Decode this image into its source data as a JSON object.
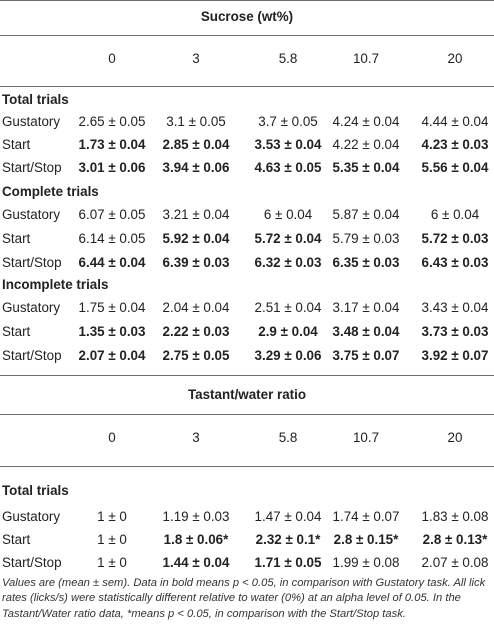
{
  "table1": {
    "header": "Sucrose (wt%)",
    "columns": [
      "0",
      "3",
      "5.8",
      "10.7",
      "20"
    ],
    "sections": [
      {
        "title": "Total trials",
        "rows": [
          {
            "label": "Gustatory",
            "cells": [
              {
                "text": "2.65 ± 0.05",
                "bold": false
              },
              {
                "text": "3.1 ± 0.05",
                "bold": false
              },
              {
                "text": "3.7 ± 0.05",
                "bold": false
              },
              {
                "text": "4.24 ± 0.04",
                "bold": false
              },
              {
                "text": "4.44 ± 0.04",
                "bold": false
              }
            ]
          },
          {
            "label": "Start",
            "cells": [
              {
                "text": "1.73 ± 0.04",
                "bold": true
              },
              {
                "text": "2.85 ± 0.04",
                "bold": true
              },
              {
                "text": "3.53 ± 0.04",
                "bold": true
              },
              {
                "text": "4.22 ± 0.04",
                "bold": false
              },
              {
                "text": "4.23 ± 0.03",
                "bold": true
              }
            ]
          },
          {
            "label": "Start/Stop",
            "cells": [
              {
                "text": "3.01 ± 0.06",
                "bold": true
              },
              {
                "text": "3.94 ± 0.06",
                "bold": true
              },
              {
                "text": "4.63 ± 0.05",
                "bold": true
              },
              {
                "text": "5.35 ± 0.04",
                "bold": true
              },
              {
                "text": "5.56 ± 0.04",
                "bold": true
              }
            ]
          }
        ]
      },
      {
        "title": "Complete trials",
        "rows": [
          {
            "label": "Gustatory",
            "cells": [
              {
                "text": "6.07 ± 0.05",
                "bold": false
              },
              {
                "text": "3.21 ± 0.04",
                "bold": false
              },
              {
                "text": "6 ± 0.04",
                "bold": false
              },
              {
                "text": "5.87 ± 0.04",
                "bold": false
              },
              {
                "text": "6 ± 0.04",
                "bold": false
              }
            ]
          },
          {
            "label": "Start",
            "cells": [
              {
                "text": "6.14 ± 0.05",
                "bold": false
              },
              {
                "text": "5.92 ± 0.04",
                "bold": true
              },
              {
                "text": "5.72 ± 0.04",
                "bold": true
              },
              {
                "text": "5.79 ± 0.03",
                "bold": false
              },
              {
                "text": "5.72 ± 0.03",
                "bold": true
              }
            ]
          },
          {
            "label": "Start/Stop",
            "cells": [
              {
                "text": "6.44 ± 0.04",
                "bold": true
              },
              {
                "text": "6.39 ± 0.03",
                "bold": true
              },
              {
                "text": "6.32 ± 0.03",
                "bold": true
              },
              {
                "text": "6.35 ± 0.03",
                "bold": true
              },
              {
                "text": "6.43 ± 0.03",
                "bold": true
              }
            ]
          }
        ]
      },
      {
        "title": "Incomplete trials",
        "rows": [
          {
            "label": "Gustatory",
            "cells": [
              {
                "text": "1.75 ± 0.04",
                "bold": false
              },
              {
                "text": "2.04 ± 0.04",
                "bold": false
              },
              {
                "text": "2.51 ± 0.04",
                "bold": false
              },
              {
                "text": "3.17 ± 0.04",
                "bold": false
              },
              {
                "text": "3.43 ± 0.04",
                "bold": false
              }
            ]
          },
          {
            "label": "Start",
            "cells": [
              {
                "text": "1.35 ± 0.03",
                "bold": true
              },
              {
                "text": "2.22 ± 0.03",
                "bold": true
              },
              {
                "text": "2.9 ± 0.04",
                "bold": true
              },
              {
                "text": "3.48 ± 0.04",
                "bold": true
              },
              {
                "text": "3.73 ± 0.03",
                "bold": true
              }
            ]
          },
          {
            "label": "Start/Stop",
            "cells": [
              {
                "text": "2.07 ± 0.04",
                "bold": true
              },
              {
                "text": "2.75 ± 0.05",
                "bold": true
              },
              {
                "text": "3.29 ± 0.06",
                "bold": true
              },
              {
                "text": "3.75 ± 0.07",
                "bold": true
              },
              {
                "text": "3.92 ± 0.07",
                "bold": true
              }
            ]
          }
        ]
      }
    ]
  },
  "table2": {
    "header": "Tastant/water ratio",
    "columns": [
      "0",
      "3",
      "5.8",
      "10.7",
      "20"
    ],
    "sections": [
      {
        "title": "Total trials",
        "rows": [
          {
            "label": "Gustatory",
            "cells": [
              {
                "text": "1 ± 0",
                "bold": false
              },
              {
                "text": "1.19 ± 0.03",
                "bold": false
              },
              {
                "text": "1.47 ± 0.04",
                "bold": false
              },
              {
                "text": "1.74 ± 0.07",
                "bold": false
              },
              {
                "text": "1.83 ± 0.08",
                "bold": false
              }
            ]
          },
          {
            "label": "Start",
            "cells": [
              {
                "text": "1 ± 0",
                "bold": false
              },
              {
                "text": "1.8 ± 0.06*",
                "bold": true
              },
              {
                "text": "2.32 ± 0.1*",
                "bold": true
              },
              {
                "text": "2.8 ± 0.15*",
                "bold": true
              },
              {
                "text": "2.8 ± 0.13*",
                "bold": true
              }
            ]
          },
          {
            "label": "Start/Stop",
            "cells": [
              {
                "text": "1 ± 0",
                "bold": false
              },
              {
                "text": "1.44 ± 0.04",
                "bold": true
              },
              {
                "text": "1.71 ± 0.05",
                "bold": true
              },
              {
                "text": "1.99 ± 0.08",
                "bold": false
              },
              {
                "text": "2.07 ± 0.08",
                "bold": false
              }
            ]
          }
        ]
      }
    ]
  },
  "footnote": "Values are (mean ± sem). Data in bold means p < 0.05, in comparison with Gustatory task. All lick rates (licks/s) were statistically different relative to water (0%) at an alpha level of 0.05. In the Tastant/Water ratio data, *means p < 0.05, in comparison with the Start/Stop task."
}
